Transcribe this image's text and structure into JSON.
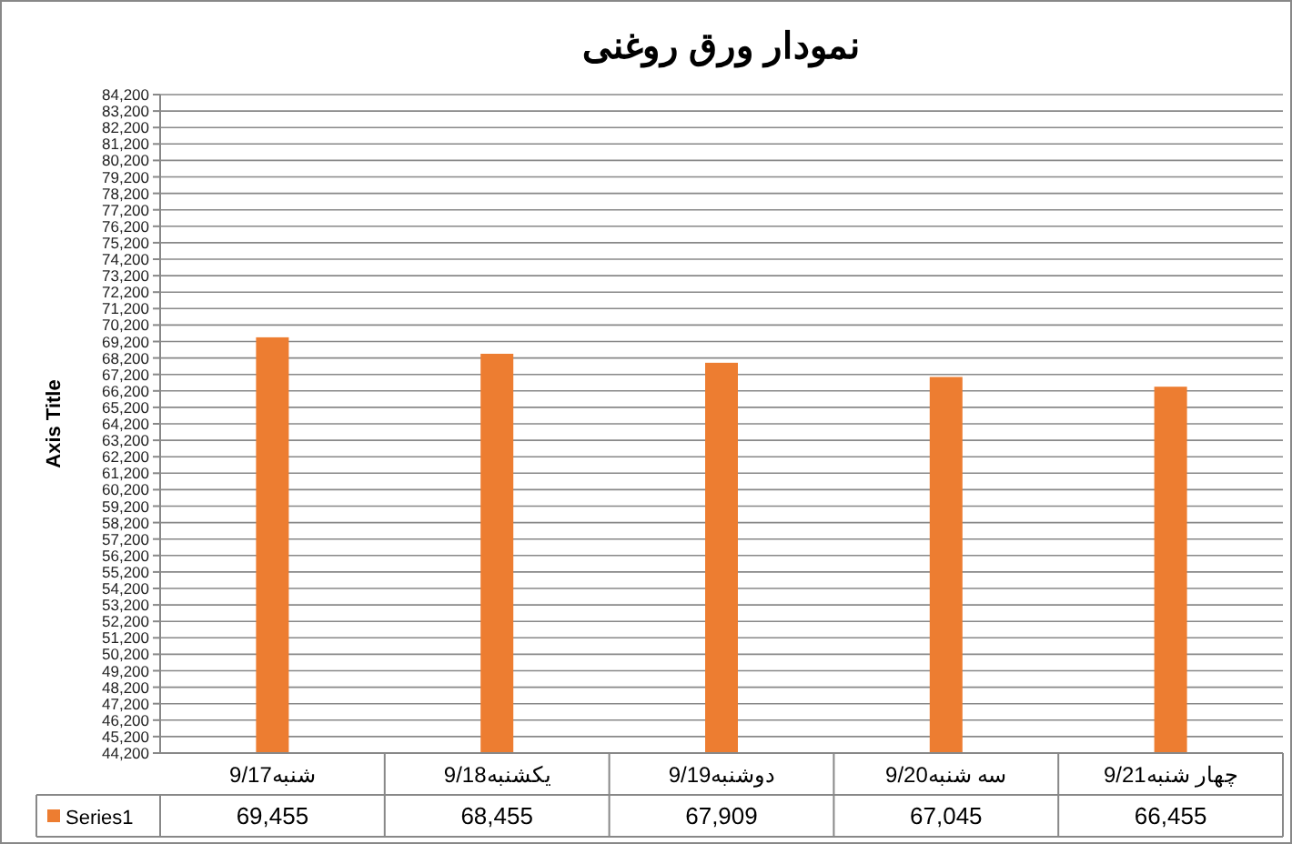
{
  "chart_data": {
    "type": "bar",
    "title": "نمودار ورق روغنی",
    "ylabel": "Axis Title",
    "categories": [
      "شنبه9/17",
      "یکشنبه9/18",
      "دوشنبه9/19",
      "سه شنبه9/20",
      "چهار شنبه9/21"
    ],
    "series": [
      {
        "name": "Series1",
        "color": "#ed7d31",
        "values": [
          69455,
          68455,
          67909,
          67045,
          66455
        ],
        "value_labels": [
          "69,455",
          "68,455",
          "67,909",
          "67,045",
          "66,455"
        ]
      }
    ],
    "grid": "y",
    "ylim": [
      44200,
      84200
    ],
    "yticks": [
      {
        "value": 44200,
        "label": "44,200"
      },
      {
        "value": 45200,
        "label": "45,200"
      },
      {
        "value": 46200,
        "label": "46,200"
      },
      {
        "value": 47200,
        "label": "47,200"
      },
      {
        "value": 48200,
        "label": "48,200"
      },
      {
        "value": 49200,
        "label": "49,200"
      },
      {
        "value": 50200,
        "label": "50,200"
      },
      {
        "value": 51200,
        "label": "51,200"
      },
      {
        "value": 52200,
        "label": "52,200"
      },
      {
        "value": 53200,
        "label": "53,200"
      },
      {
        "value": 54200,
        "label": "54,200"
      },
      {
        "value": 55200,
        "label": "55,200"
      },
      {
        "value": 56200,
        "label": "56,200"
      },
      {
        "value": 57200,
        "label": "57,200"
      },
      {
        "value": 58200,
        "label": "58,200"
      },
      {
        "value": 59200,
        "label": "59,200"
      },
      {
        "value": 60200,
        "label": "60,200"
      },
      {
        "value": 61200,
        "label": "61,200"
      },
      {
        "value": 62200,
        "label": "62,200"
      },
      {
        "value": 63200,
        "label": "63,200"
      },
      {
        "value": 64200,
        "label": "64,200"
      },
      {
        "value": 65200,
        "label": "65,200"
      },
      {
        "value": 66200,
        "label": "66,200"
      },
      {
        "value": 67200,
        "label": "67,200"
      },
      {
        "value": 68200,
        "label": "68,200"
      },
      {
        "value": 69200,
        "label": "69,200"
      },
      {
        "value": 70200,
        "label": "70,200"
      },
      {
        "value": 71200,
        "label": "71,200"
      },
      {
        "value": 72200,
        "label": "72,200"
      },
      {
        "value": 73200,
        "label": "73,200"
      },
      {
        "value": 74200,
        "label": "74,200"
      },
      {
        "value": 75200,
        "label": "75,200"
      },
      {
        "value": 76200,
        "label": "76,200"
      },
      {
        "value": 77200,
        "label": "77,200"
      },
      {
        "value": 78200,
        "label": "78,200"
      },
      {
        "value": 79200,
        "label": "79,200"
      },
      {
        "value": 80200,
        "label": "80,200"
      },
      {
        "value": 81200,
        "label": "81,200"
      },
      {
        "value": 82200,
        "label": "82,200"
      },
      {
        "value": 83200,
        "label": "83,200"
      },
      {
        "value": 84200,
        "label": "84,200"
      }
    ]
  }
}
